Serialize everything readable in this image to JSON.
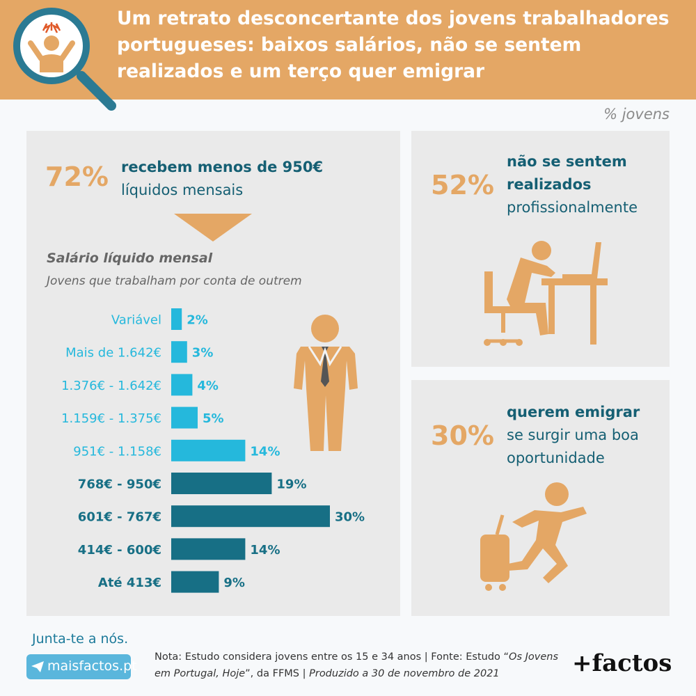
{
  "header": {
    "title": "Um retrato desconcertante dos jovens trabalhadores portugueses: baixos salários, não se sentem realizados e um terço quer emigrar"
  },
  "unit_label": "% jovens",
  "stat_salary": {
    "pct": "72%",
    "line1": "recebem menos de 950€",
    "line2": "líquidos mensais"
  },
  "stat_fulfilled": {
    "pct": "52%",
    "line1": "não se sentem",
    "line2": "realizados",
    "line3": "profissionalmente"
  },
  "stat_emigrate": {
    "pct": "30%",
    "line1": "querem emigrar",
    "line2": "se surgir uma boa",
    "line3": "oportunidade"
  },
  "chart_data": {
    "type": "bar",
    "orientation": "horizontal",
    "title": "Salário líquido mensal",
    "subtitle": "Jovens que trabalham por conta de outrem",
    "categories": [
      "Variável",
      "Mais de 1.642€",
      "1.376€ - 1.642€",
      "1.159€ - 1.375€",
      "951€ - 1.158€",
      "768€ - 950€",
      "601€ - 767€",
      "414€ - 600€",
      "Até 413€"
    ],
    "values": [
      2,
      3,
      4,
      5,
      14,
      19,
      30,
      14,
      9
    ],
    "value_labels": [
      "2%",
      "3%",
      "4%",
      "5%",
      "14%",
      "19%",
      "30%",
      "14%",
      "9%"
    ],
    "highlight": [
      false,
      false,
      false,
      false,
      false,
      true,
      true,
      true,
      true
    ],
    "colors": {
      "normal": "#25b8dc",
      "highlight": "#176f85"
    }
  },
  "footer": {
    "join": "Junta-te a nós.",
    "site": "maisfactos.pt",
    "note_a": "Nota: Estudo considera jovens entre os 15 e 34 anos | Fonte: Estudo “",
    "note_b": "Os Jovens em Portugal, Hoje",
    "note_c": "”, da FFMS | ",
    "note_d": "Produzido a 30 de novembro de 2021",
    "brand": "+factos"
  },
  "colors": {
    "accent": "#e4a765",
    "teal": "#155f73",
    "panel": "#eaeaea"
  }
}
